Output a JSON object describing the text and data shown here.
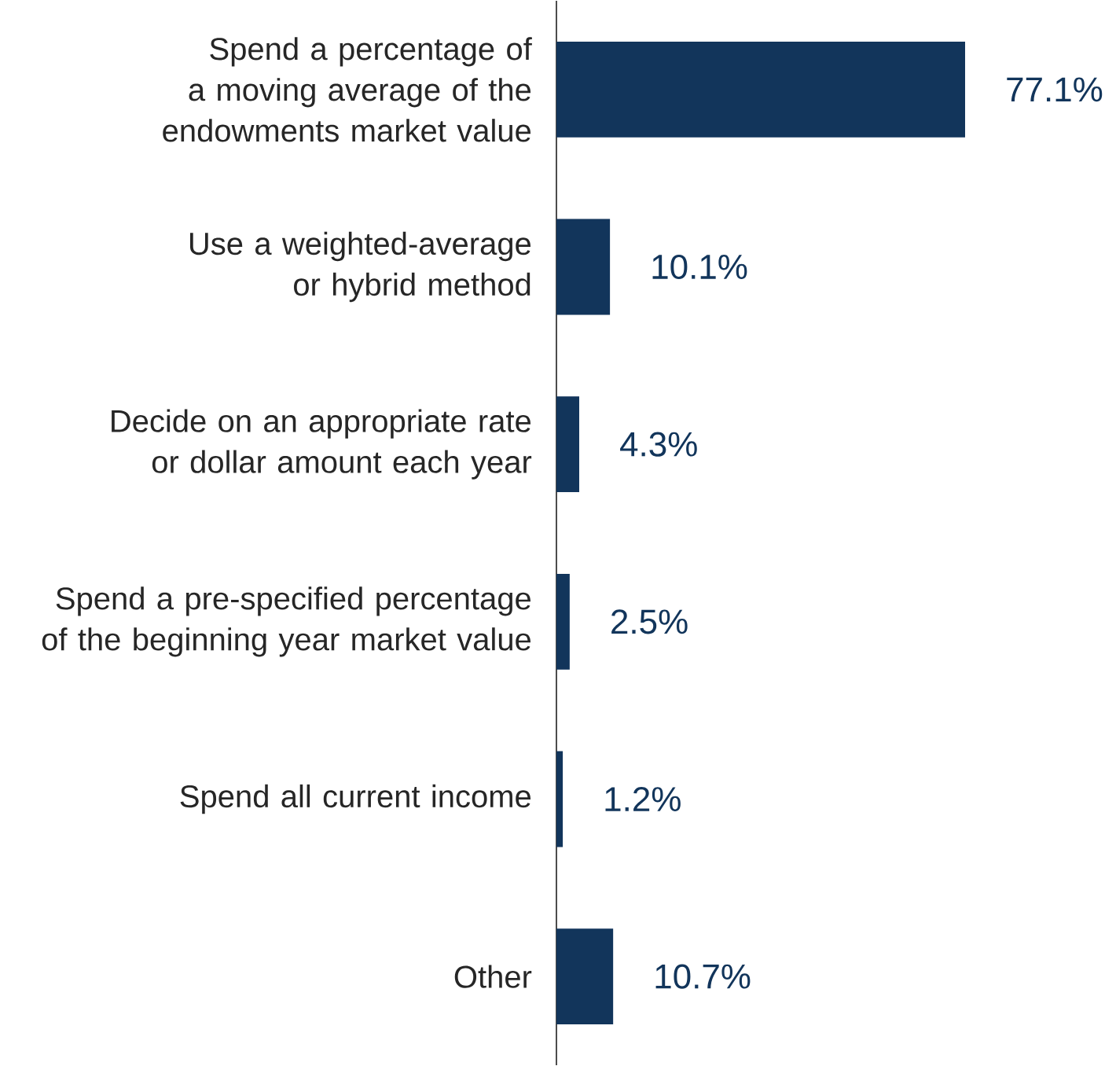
{
  "chart_data": {
    "type": "bar",
    "orientation": "horizontal",
    "categories": [
      "Spend a percentage of a moving average of the endowments market value",
      "Use a weighted-average or hybrid method",
      "Decide on an appropriate rate or dollar amount each year",
      "Spend a pre-specified percentage of the beginning year market value",
      "Spend all current income",
      "Other"
    ],
    "values": [
      77.1,
      10.1,
      4.3,
      2.5,
      1.2,
      10.7
    ],
    "value_labels": [
      "77.1%",
      "10.1%",
      "4.3%",
      "2.5%",
      "1.2%",
      "10.7%"
    ],
    "color": "#12355b"
  }
}
